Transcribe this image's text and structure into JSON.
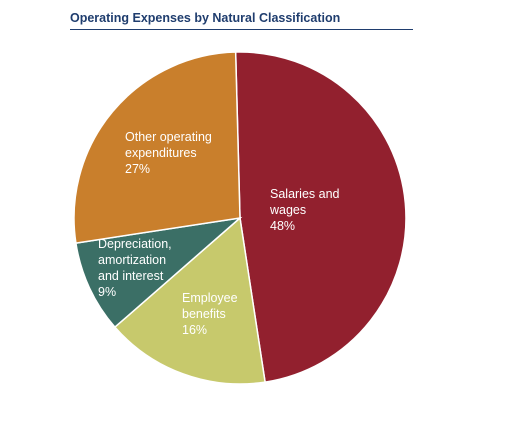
{
  "chart_data": {
    "type": "pie",
    "title": "Operating Expenses by Natural Classification",
    "slices": [
      {
        "label_lines": [
          "Salaries and",
          "wages"
        ],
        "pct_label": "48%",
        "value": 48,
        "color": "#92202e"
      },
      {
        "label_lines": [
          "Employee",
          "benefits"
        ],
        "pct_label": "16%",
        "value": 16,
        "color": "#c7c96c"
      },
      {
        "label_lines": [
          "Depreciation,",
          "amortization",
          "and interest"
        ],
        "pct_label": "9%",
        "value": 9,
        "color": "#3b6f66"
      },
      {
        "label_lines": [
          "Other operating",
          "expenditures"
        ],
        "pct_label": "27%",
        "value": 27,
        "color": "#c97f2c"
      }
    ]
  }
}
